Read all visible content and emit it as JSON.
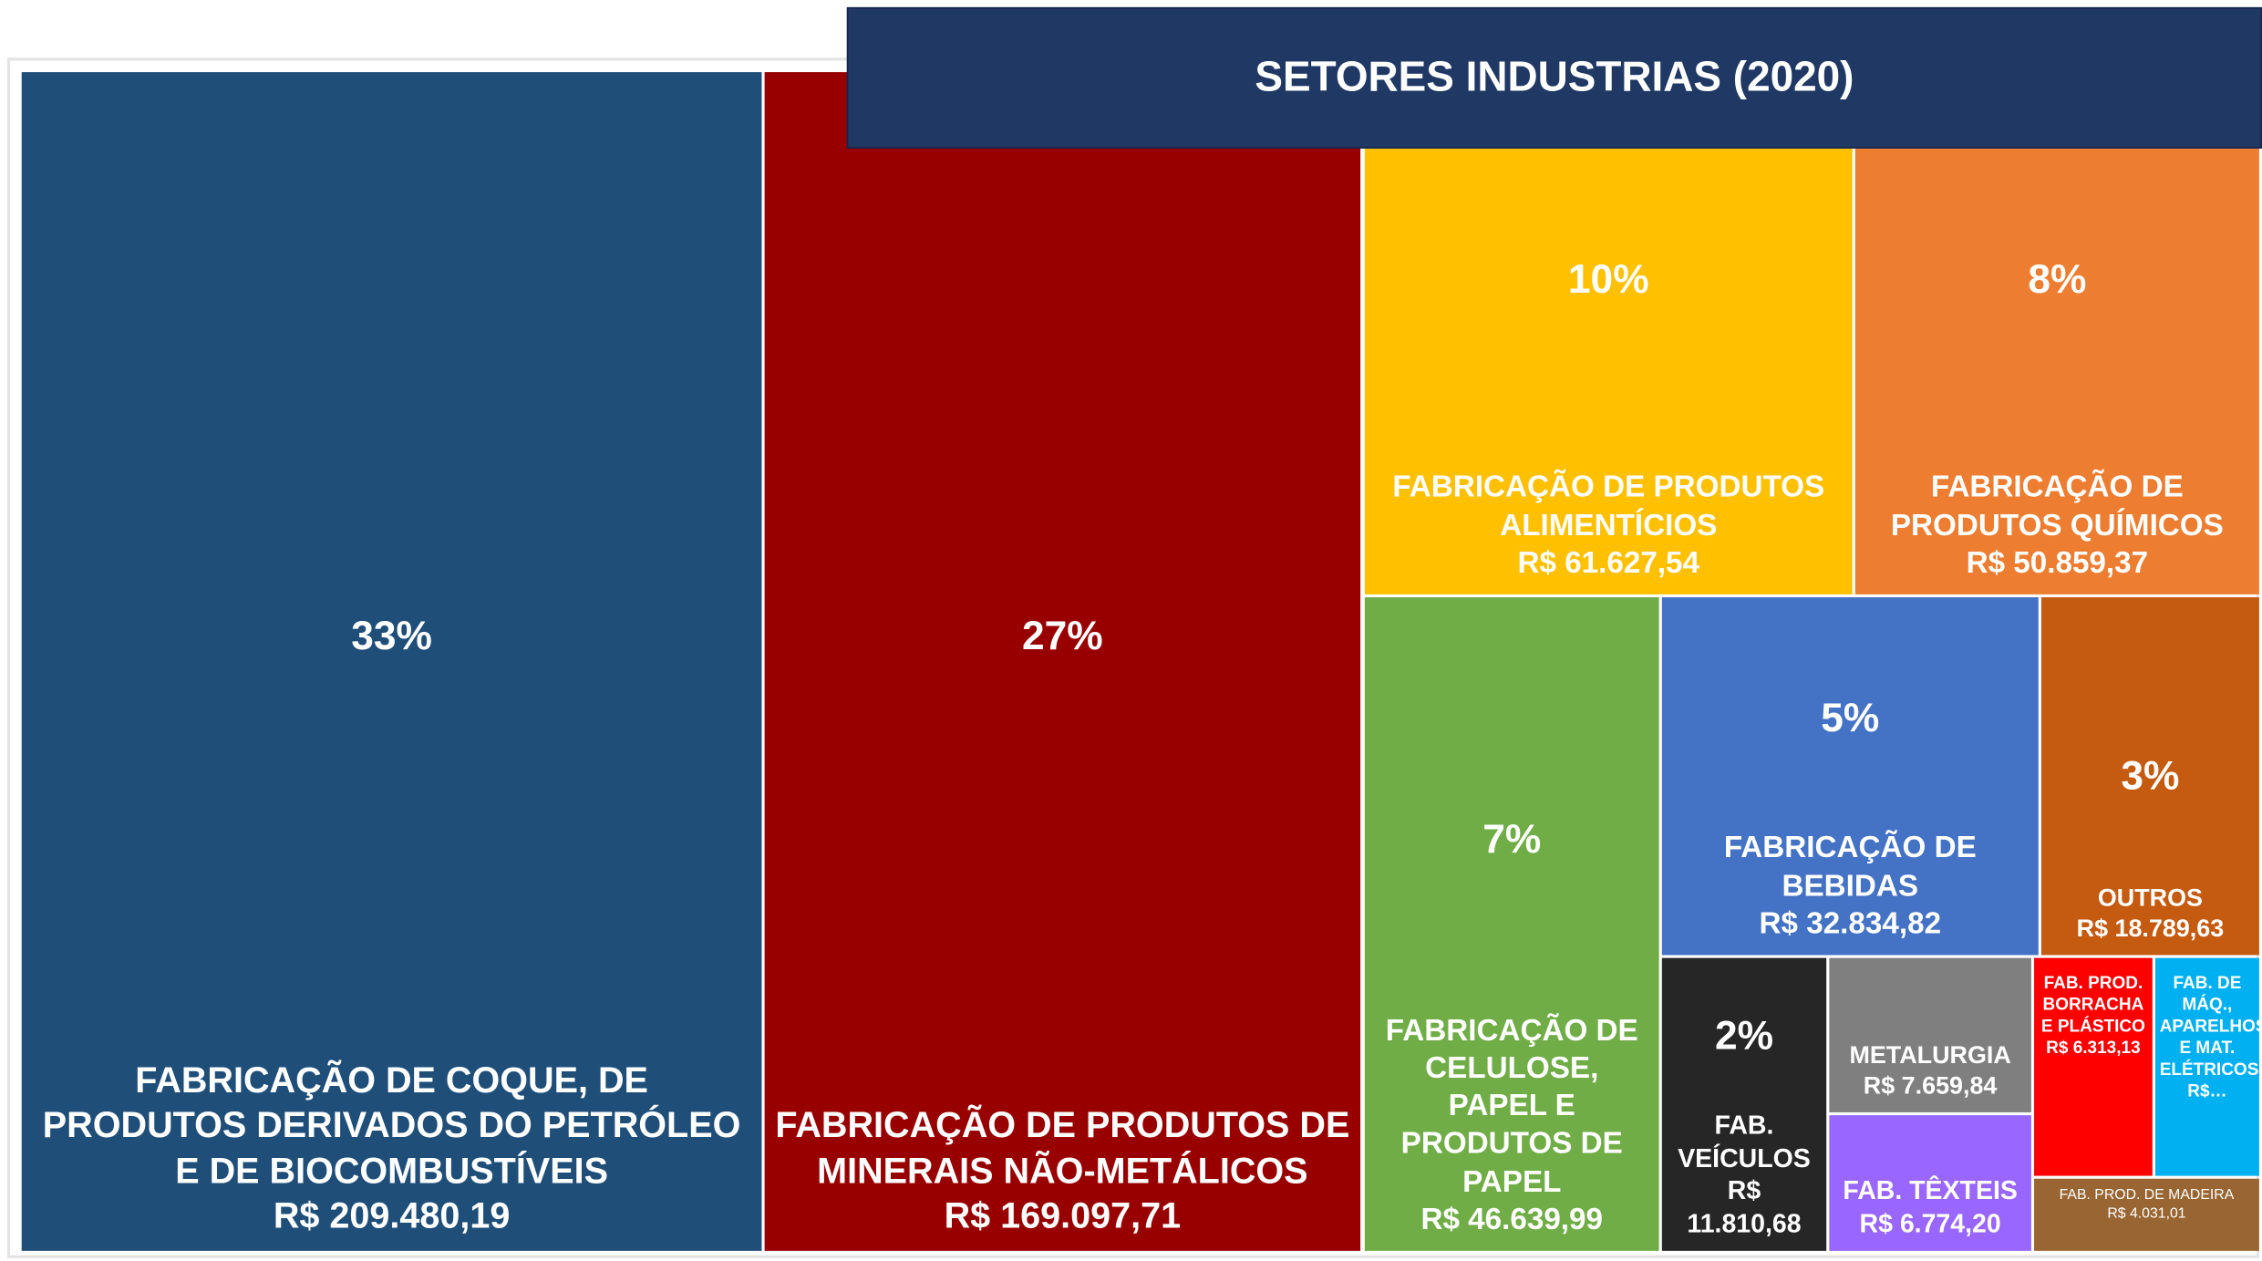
{
  "chart_data": {
    "type": "treemap",
    "title": "SETORES INDUSTRIAS (2020)",
    "items": [
      {
        "name": "FABRICAÇÃO DE COQUE, DE PRODUTOS DERIVADOS DO PETRÓLEO E DE BIOCOMBUSTÍVEIS",
        "value": 209480.19,
        "value_label": "R$ 209.480,19",
        "percent": 33,
        "percent_label": "33%",
        "color": "#1f4e79"
      },
      {
        "name": "FABRICAÇÃO DE PRODUTOS DE MINERAIS NÃO-METÁLICOS",
        "value": 169097.71,
        "value_label": "R$ 169.097,71",
        "percent": 27,
        "percent_label": "27%",
        "color": "#980000"
      },
      {
        "name": "FABRICAÇÃO DE PRODUTOS ALIMENTÍCIOS",
        "value": 61627.54,
        "value_label": "R$ 61.627,54",
        "percent": 10,
        "percent_label": "10%",
        "color": "#ffc000"
      },
      {
        "name": "FABRICAÇÃO DE PRODUTOS QUÍMICOS",
        "value": 50859.37,
        "value_label": "R$ 50.859,37",
        "percent": 8,
        "percent_label": "8%",
        "color": "#ed7d31"
      },
      {
        "name": "FABRICAÇÃO DE CELULOSE, PAPEL E PRODUTOS DE PAPEL",
        "value": 46639.99,
        "value_label": "R$ 46.639,99",
        "percent": 7,
        "percent_label": "7%",
        "color": "#70ad47"
      },
      {
        "name": "FABRICAÇÃO DE BEBIDAS",
        "value": 32834.82,
        "value_label": "R$ 32.834,82",
        "percent": 5,
        "percent_label": "5%",
        "color": "#4472c4"
      },
      {
        "name": "OUTROS",
        "value": 18789.63,
        "value_label": "R$ 18.789,63",
        "percent": 3,
        "percent_label": "3%",
        "color": "#c55a11"
      },
      {
        "name": "FAB. VEÍCULOS",
        "value": 11810.68,
        "value_label": "R$ 11.810,68",
        "percent": 2,
        "percent_label": "2%",
        "color": "#262626"
      },
      {
        "name": "METALURGIA",
        "value": 7659.84,
        "value_label": "R$ 7.659,84",
        "color": "#7f7f7f"
      },
      {
        "name": "FAB. TÊXTEIS",
        "value": 6774.2,
        "value_label": "R$ 6.774,20",
        "color": "#9966ff"
      },
      {
        "name": "FAB. PROD. BORRACHA E PLÁSTICO",
        "value": 6313.13,
        "value_label": "R$ 6.313,13",
        "color": "#ff0000"
      },
      {
        "name": "FAB. DE MÁQ., APARELHOS E MAT. ELÉTRICOS",
        "value": 5500,
        "value_label": "R$…",
        "color": "#00b0f0"
      },
      {
        "name": "FAB.  PROD. DE MADEIRA",
        "value": 4031.01,
        "value_label": "R$ 4.031,01",
        "color": "#996633"
      }
    ]
  }
}
